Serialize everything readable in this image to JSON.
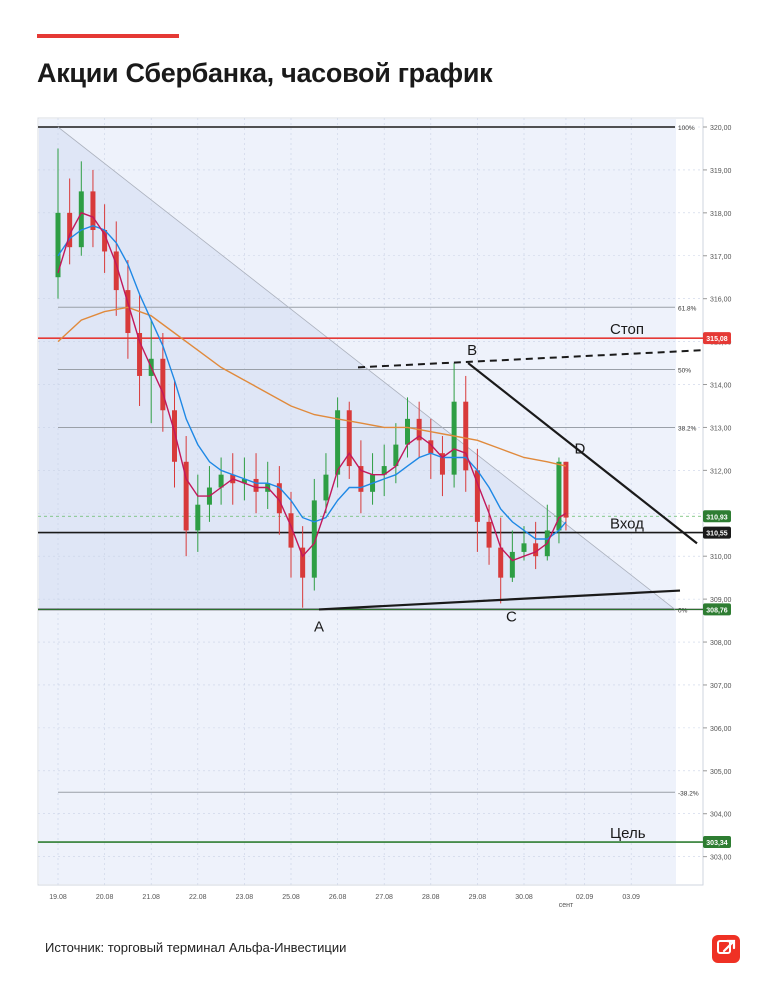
{
  "title": "Акции Сбербанка, часовой график",
  "source": "Источник: торговый терминал Альфа-Инвестиции",
  "colors": {
    "accent": "#e53935",
    "stop": "#e53935",
    "target": "#2e7d32",
    "entry": "#1a1a1a",
    "ma_fast": "#c2185b",
    "ma_mid": "#1e88e5",
    "ma_slow": "#e08a3c",
    "logo": "#ef3124"
  },
  "chart_data": {
    "type": "candlestick",
    "title": "Акции Сбербанка, часовой график",
    "y_ticks": [
      "320,00",
      "319,00",
      "318,00",
      "317,00",
      "316,00",
      "315,00",
      "314,00",
      "313,00",
      "312,00",
      "311,00",
      "310,00",
      "309,00",
      "308,00",
      "307,00",
      "306,00",
      "305,00",
      "304,00",
      "303,00"
    ],
    "ylim": [
      302.3,
      320.2
    ],
    "x_labels": [
      "19.08",
      "20.08",
      "21.08",
      "22.08",
      "23.08",
      "25.08",
      "26.08",
      "27.08",
      "28.08",
      "29.08",
      "30.08",
      "сент",
      "02.09",
      "03.09"
    ],
    "x_label_positions": [
      0,
      1,
      2,
      3,
      4,
      5,
      6,
      7,
      8,
      9,
      10,
      10.9,
      11.3,
      12.3
    ],
    "fib_levels": [
      {
        "label": "100%",
        "value": 320.0
      },
      {
        "label": "61.8%",
        "value": 315.8
      },
      {
        "label": "50%",
        "value": 314.35
      },
      {
        "label": "38.2%",
        "value": 313.0
      },
      {
        "label": "0%",
        "value": 308.76
      },
      {
        "label": "-38.2%",
        "value": 304.5
      }
    ],
    "levels": [
      {
        "label": "Стоп",
        "value": 315.08,
        "price_tag": "315,08",
        "color": "#e53935"
      },
      {
        "label": "Вход",
        "value": 310.55,
        "price_tag": "310,55",
        "color": "#1a1a1a"
      },
      {
        "label": "Цель",
        "value": 303.34,
        "price_tag": "303,34",
        "color": "#2e7d32"
      }
    ],
    "current_price": {
      "value": 310.93,
      "price_tag": "310,93",
      "color": "#2e7d32"
    },
    "zero_level_tag": {
      "value": 308.76,
      "price_tag": "308,76",
      "color": "#2e7d32"
    },
    "pattern_points": [
      {
        "label": "A",
        "x": 5.6,
        "y": 308.76
      },
      {
        "label": "B",
        "x": 8.8,
        "y": 314.5
      },
      {
        "label": "C",
        "x": 9.6,
        "y": 308.9
      },
      {
        "label": "D",
        "x": 10.9,
        "y": 312.3
      }
    ],
    "candles": [
      [
        0,
        316.5,
        318,
        319.5,
        316
      ],
      [
        0.25,
        318,
        317.2,
        318.8,
        316.8
      ],
      [
        0.5,
        317.2,
        318.5,
        319.2,
        317
      ],
      [
        0.75,
        318.5,
        317.6,
        319,
        317.2
      ],
      [
        1.0,
        317.6,
        317.1,
        318.2,
        316.6
      ],
      [
        1.25,
        317.1,
        316.2,
        317.8,
        315.6
      ],
      [
        1.5,
        316.2,
        315.2,
        316.9,
        314.6
      ],
      [
        1.75,
        315.2,
        314.2,
        316.1,
        313.5
      ],
      [
        2.0,
        314.2,
        314.6,
        315.5,
        313.1
      ],
      [
        2.25,
        314.6,
        313.4,
        315.2,
        312.9
      ],
      [
        2.5,
        313.4,
        312.2,
        314.1,
        311.6
      ],
      [
        2.75,
        312.2,
        310.6,
        312.8,
        310
      ],
      [
        3.0,
        310.6,
        311.2,
        311.9,
        310.1
      ],
      [
        3.25,
        311.2,
        311.6,
        312.1,
        310.8
      ],
      [
        3.5,
        311.6,
        311.9,
        312.3,
        311.2
      ],
      [
        3.75,
        311.9,
        311.7,
        312.4,
        311.2
      ],
      [
        4.0,
        311.7,
        311.8,
        312.3,
        311.3
      ],
      [
        4.25,
        311.8,
        311.5,
        312.4,
        311
      ],
      [
        4.5,
        311.5,
        311.7,
        312.2,
        311.1
      ],
      [
        4.75,
        311.7,
        311.0,
        312.1,
        310.5
      ],
      [
        5.0,
        311.0,
        310.2,
        311.5,
        309.5
      ],
      [
        5.25,
        310.2,
        309.5,
        310.7,
        308.8
      ],
      [
        5.5,
        309.5,
        311.3,
        311.8,
        309.2
      ],
      [
        5.75,
        311.3,
        311.9,
        312.4,
        311
      ],
      [
        6.0,
        311.9,
        313.4,
        313.7,
        311.6
      ],
      [
        6.25,
        313.4,
        312.1,
        313.6,
        311.8
      ],
      [
        6.5,
        312.1,
        311.5,
        312.7,
        311
      ],
      [
        6.75,
        311.5,
        311.9,
        312.4,
        311.2
      ],
      [
        7.0,
        311.9,
        312.1,
        312.6,
        311.4
      ],
      [
        7.25,
        312.1,
        312.6,
        313.1,
        311.7
      ],
      [
        7.5,
        312.6,
        313.2,
        313.7,
        312.3
      ],
      [
        7.75,
        313.2,
        312.7,
        313.6,
        312.3
      ],
      [
        8.0,
        312.7,
        312.4,
        313.2,
        311.8
      ],
      [
        8.25,
        312.4,
        311.9,
        312.8,
        311.4
      ],
      [
        8.5,
        311.9,
        313.6,
        314.5,
        311.6
      ],
      [
        8.75,
        313.6,
        312.0,
        314.2,
        311.5
      ],
      [
        9.0,
        312.0,
        310.8,
        312.5,
        310.1
      ],
      [
        9.25,
        310.8,
        310.2,
        311.2,
        309.8
      ],
      [
        9.5,
        310.2,
        309.5,
        310.9,
        308.9
      ],
      [
        9.75,
        309.5,
        310.1,
        310.6,
        309.4
      ],
      [
        10.0,
        310.1,
        310.3,
        310.7,
        309.9
      ],
      [
        10.25,
        310.3,
        310.0,
        310.8,
        309.7
      ],
      [
        10.5,
        310.0,
        310.6,
        311.2,
        309.9
      ],
      [
        10.75,
        310.6,
        312.2,
        312.3,
        310.3
      ],
      [
        10.9,
        312.2,
        310.9,
        312.2,
        310.6
      ]
    ],
    "ma_fast": [
      [
        0,
        316.6
      ],
      [
        0.25,
        317.5
      ],
      [
        0.5,
        318.0
      ],
      [
        0.75,
        317.9
      ],
      [
        1.0,
        317.5
      ],
      [
        1.25,
        316.8
      ],
      [
        1.5,
        315.9
      ],
      [
        1.75,
        315.0
      ],
      [
        2.0,
        314.4
      ],
      [
        2.25,
        313.8
      ],
      [
        2.5,
        312.9
      ],
      [
        2.75,
        311.8
      ],
      [
        3.0,
        311.4
      ],
      [
        3.25,
        311.4
      ],
      [
        3.5,
        311.6
      ],
      [
        3.75,
        311.8
      ],
      [
        4.0,
        311.7
      ],
      [
        4.25,
        311.6
      ],
      [
        4.5,
        311.6
      ],
      [
        4.75,
        311.3
      ],
      [
        5.0,
        310.7
      ],
      [
        5.25,
        310.0
      ],
      [
        5.5,
        310.3
      ],
      [
        5.75,
        311.1
      ],
      [
        6.0,
        312.0
      ],
      [
        6.25,
        312.4
      ],
      [
        6.5,
        312.0
      ],
      [
        6.75,
        311.9
      ],
      [
        7.0,
        311.9
      ],
      [
        7.25,
        312.1
      ],
      [
        7.5,
        312.6
      ],
      [
        7.75,
        312.8
      ],
      [
        8.0,
        312.6
      ],
      [
        8.25,
        312.3
      ],
      [
        8.5,
        312.5
      ],
      [
        8.75,
        312.4
      ],
      [
        9.0,
        311.7
      ],
      [
        9.25,
        311.0
      ],
      [
        9.5,
        310.2
      ],
      [
        9.75,
        309.9
      ],
      [
        10.0,
        310.0
      ],
      [
        10.25,
        310.1
      ],
      [
        10.5,
        310.3
      ],
      [
        10.75,
        310.9
      ],
      [
        10.9,
        311.0
      ]
    ],
    "ma_mid": [
      [
        0,
        317.0
      ],
      [
        0.25,
        317.4
      ],
      [
        0.5,
        317.6
      ],
      [
        0.75,
        317.7
      ],
      [
        1.0,
        317.6
      ],
      [
        1.25,
        317.3
      ],
      [
        1.5,
        316.8
      ],
      [
        1.75,
        316.1
      ],
      [
        2.0,
        315.5
      ],
      [
        2.25,
        314.9
      ],
      [
        2.5,
        314.1
      ],
      [
        2.75,
        313.2
      ],
      [
        3.0,
        312.6
      ],
      [
        3.25,
        312.2
      ],
      [
        3.5,
        312.0
      ],
      [
        3.75,
        311.9
      ],
      [
        4.0,
        311.8
      ],
      [
        4.25,
        311.7
      ],
      [
        4.5,
        311.7
      ],
      [
        4.75,
        311.6
      ],
      [
        5.0,
        311.3
      ],
      [
        5.25,
        310.9
      ],
      [
        5.5,
        310.8
      ],
      [
        5.75,
        310.9
      ],
      [
        6.0,
        311.3
      ],
      [
        6.25,
        311.6
      ],
      [
        6.5,
        311.6
      ],
      [
        6.75,
        311.7
      ],
      [
        7.0,
        311.8
      ],
      [
        7.25,
        311.9
      ],
      [
        7.5,
        312.1
      ],
      [
        7.75,
        312.3
      ],
      [
        8.0,
        312.4
      ],
      [
        8.25,
        312.3
      ],
      [
        8.5,
        312.3
      ],
      [
        8.75,
        312.3
      ],
      [
        9.0,
        312.0
      ],
      [
        9.25,
        311.6
      ],
      [
        9.5,
        311.1
      ],
      [
        9.75,
        310.8
      ],
      [
        10.0,
        310.6
      ],
      [
        10.25,
        310.4
      ],
      [
        10.5,
        310.4
      ],
      [
        10.75,
        310.6
      ],
      [
        10.9,
        310.8
      ]
    ],
    "ma_slow": [
      [
        0,
        315.0
      ],
      [
        0.5,
        315.5
      ],
      [
        1.0,
        315.7
      ],
      [
        1.5,
        315.8
      ],
      [
        2.0,
        315.6
      ],
      [
        2.5,
        315.2
      ],
      [
        3.0,
        314.8
      ],
      [
        3.5,
        314.4
      ],
      [
        4.0,
        314.1
      ],
      [
        4.5,
        313.8
      ],
      [
        5.0,
        313.5
      ],
      [
        5.5,
        313.3
      ],
      [
        6.0,
        313.2
      ],
      [
        6.5,
        313.1
      ],
      [
        7.0,
        313.0
      ],
      [
        7.5,
        313.0
      ],
      [
        8.0,
        312.9
      ],
      [
        8.5,
        312.8
      ],
      [
        9.0,
        312.7
      ],
      [
        9.5,
        312.5
      ],
      [
        10.0,
        312.3
      ],
      [
        10.5,
        312.2
      ],
      [
        10.9,
        312.1
      ]
    ]
  }
}
